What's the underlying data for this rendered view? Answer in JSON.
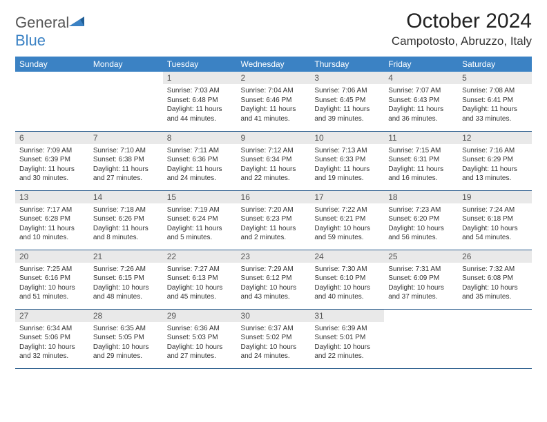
{
  "logo": {
    "text_general": "General",
    "text_blue": "Blue"
  },
  "title": "October 2024",
  "location": "Campotosto, Abruzzo, Italy",
  "day_headers": [
    "Sunday",
    "Monday",
    "Tuesday",
    "Wednesday",
    "Thursday",
    "Friday",
    "Saturday"
  ],
  "colors": {
    "header_bg": "#3b82c4",
    "header_text": "#ffffff",
    "daynum_bg": "#e9e9e9",
    "border": "#25588a",
    "logo_gray": "#6b6b6b",
    "logo_blue": "#3b82c4"
  },
  "weeks": [
    [
      null,
      null,
      {
        "day": "1",
        "sunrise": "Sunrise: 7:03 AM",
        "sunset": "Sunset: 6:48 PM",
        "daylight": "Daylight: 11 hours and 44 minutes."
      },
      {
        "day": "2",
        "sunrise": "Sunrise: 7:04 AM",
        "sunset": "Sunset: 6:46 PM",
        "daylight": "Daylight: 11 hours and 41 minutes."
      },
      {
        "day": "3",
        "sunrise": "Sunrise: 7:06 AM",
        "sunset": "Sunset: 6:45 PM",
        "daylight": "Daylight: 11 hours and 39 minutes."
      },
      {
        "day": "4",
        "sunrise": "Sunrise: 7:07 AM",
        "sunset": "Sunset: 6:43 PM",
        "daylight": "Daylight: 11 hours and 36 minutes."
      },
      {
        "day": "5",
        "sunrise": "Sunrise: 7:08 AM",
        "sunset": "Sunset: 6:41 PM",
        "daylight": "Daylight: 11 hours and 33 minutes."
      }
    ],
    [
      {
        "day": "6",
        "sunrise": "Sunrise: 7:09 AM",
        "sunset": "Sunset: 6:39 PM",
        "daylight": "Daylight: 11 hours and 30 minutes."
      },
      {
        "day": "7",
        "sunrise": "Sunrise: 7:10 AM",
        "sunset": "Sunset: 6:38 PM",
        "daylight": "Daylight: 11 hours and 27 minutes."
      },
      {
        "day": "8",
        "sunrise": "Sunrise: 7:11 AM",
        "sunset": "Sunset: 6:36 PM",
        "daylight": "Daylight: 11 hours and 24 minutes."
      },
      {
        "day": "9",
        "sunrise": "Sunrise: 7:12 AM",
        "sunset": "Sunset: 6:34 PM",
        "daylight": "Daylight: 11 hours and 22 minutes."
      },
      {
        "day": "10",
        "sunrise": "Sunrise: 7:13 AM",
        "sunset": "Sunset: 6:33 PM",
        "daylight": "Daylight: 11 hours and 19 minutes."
      },
      {
        "day": "11",
        "sunrise": "Sunrise: 7:15 AM",
        "sunset": "Sunset: 6:31 PM",
        "daylight": "Daylight: 11 hours and 16 minutes."
      },
      {
        "day": "12",
        "sunrise": "Sunrise: 7:16 AM",
        "sunset": "Sunset: 6:29 PM",
        "daylight": "Daylight: 11 hours and 13 minutes."
      }
    ],
    [
      {
        "day": "13",
        "sunrise": "Sunrise: 7:17 AM",
        "sunset": "Sunset: 6:28 PM",
        "daylight": "Daylight: 11 hours and 10 minutes."
      },
      {
        "day": "14",
        "sunrise": "Sunrise: 7:18 AM",
        "sunset": "Sunset: 6:26 PM",
        "daylight": "Daylight: 11 hours and 8 minutes."
      },
      {
        "day": "15",
        "sunrise": "Sunrise: 7:19 AM",
        "sunset": "Sunset: 6:24 PM",
        "daylight": "Daylight: 11 hours and 5 minutes."
      },
      {
        "day": "16",
        "sunrise": "Sunrise: 7:20 AM",
        "sunset": "Sunset: 6:23 PM",
        "daylight": "Daylight: 11 hours and 2 minutes."
      },
      {
        "day": "17",
        "sunrise": "Sunrise: 7:22 AM",
        "sunset": "Sunset: 6:21 PM",
        "daylight": "Daylight: 10 hours and 59 minutes."
      },
      {
        "day": "18",
        "sunrise": "Sunrise: 7:23 AM",
        "sunset": "Sunset: 6:20 PM",
        "daylight": "Daylight: 10 hours and 56 minutes."
      },
      {
        "day": "19",
        "sunrise": "Sunrise: 7:24 AM",
        "sunset": "Sunset: 6:18 PM",
        "daylight": "Daylight: 10 hours and 54 minutes."
      }
    ],
    [
      {
        "day": "20",
        "sunrise": "Sunrise: 7:25 AM",
        "sunset": "Sunset: 6:16 PM",
        "daylight": "Daylight: 10 hours and 51 minutes."
      },
      {
        "day": "21",
        "sunrise": "Sunrise: 7:26 AM",
        "sunset": "Sunset: 6:15 PM",
        "daylight": "Daylight: 10 hours and 48 minutes."
      },
      {
        "day": "22",
        "sunrise": "Sunrise: 7:27 AM",
        "sunset": "Sunset: 6:13 PM",
        "daylight": "Daylight: 10 hours and 45 minutes."
      },
      {
        "day": "23",
        "sunrise": "Sunrise: 7:29 AM",
        "sunset": "Sunset: 6:12 PM",
        "daylight": "Daylight: 10 hours and 43 minutes."
      },
      {
        "day": "24",
        "sunrise": "Sunrise: 7:30 AM",
        "sunset": "Sunset: 6:10 PM",
        "daylight": "Daylight: 10 hours and 40 minutes."
      },
      {
        "day": "25",
        "sunrise": "Sunrise: 7:31 AM",
        "sunset": "Sunset: 6:09 PM",
        "daylight": "Daylight: 10 hours and 37 minutes."
      },
      {
        "day": "26",
        "sunrise": "Sunrise: 7:32 AM",
        "sunset": "Sunset: 6:08 PM",
        "daylight": "Daylight: 10 hours and 35 minutes."
      }
    ],
    [
      {
        "day": "27",
        "sunrise": "Sunrise: 6:34 AM",
        "sunset": "Sunset: 5:06 PM",
        "daylight": "Daylight: 10 hours and 32 minutes."
      },
      {
        "day": "28",
        "sunrise": "Sunrise: 6:35 AM",
        "sunset": "Sunset: 5:05 PM",
        "daylight": "Daylight: 10 hours and 29 minutes."
      },
      {
        "day": "29",
        "sunrise": "Sunrise: 6:36 AM",
        "sunset": "Sunset: 5:03 PM",
        "daylight": "Daylight: 10 hours and 27 minutes."
      },
      {
        "day": "30",
        "sunrise": "Sunrise: 6:37 AM",
        "sunset": "Sunset: 5:02 PM",
        "daylight": "Daylight: 10 hours and 24 minutes."
      },
      {
        "day": "31",
        "sunrise": "Sunrise: 6:39 AM",
        "sunset": "Sunset: 5:01 PM",
        "daylight": "Daylight: 10 hours and 22 minutes."
      },
      null,
      null
    ]
  ]
}
